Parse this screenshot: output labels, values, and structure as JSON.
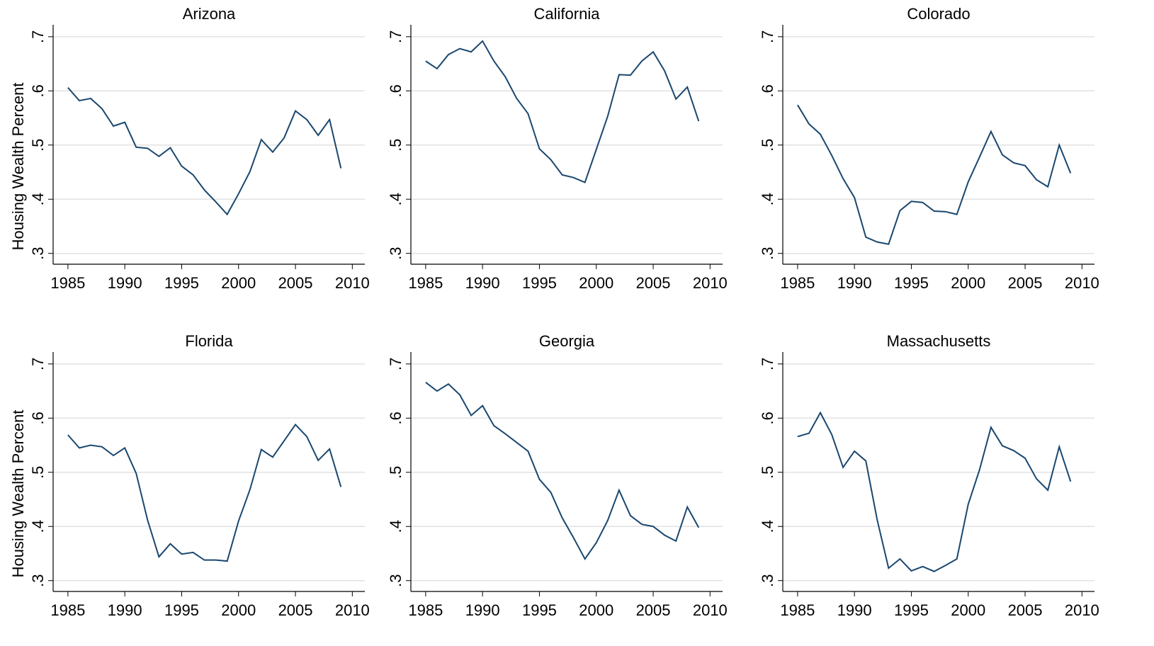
{
  "chart_data": [
    {
      "type": "line",
      "title": "Arizona",
      "ylabel": "Housing Wealth Percent",
      "color": "#1a476f",
      "grid": true,
      "x": [
        1985,
        1986,
        1987,
        1988,
        1989,
        1990,
        1991,
        1992,
        1993,
        1994,
        1995,
        1996,
        1997,
        1998,
        1999,
        2000,
        2001,
        2002,
        2003,
        2004,
        2005,
        2006,
        2007,
        2008,
        2009
      ],
      "values": [
        0.606,
        0.582,
        0.586,
        0.567,
        0.535,
        0.542,
        0.496,
        0.494,
        0.479,
        0.495,
        0.461,
        0.445,
        0.417,
        0.395,
        0.372,
        0.41,
        0.451,
        0.51,
        0.487,
        0.513,
        0.563,
        0.547,
        0.518,
        0.547,
        0.457
      ],
      "xlim": [
        1983.7,
        2011.1
      ],
      "xticks": [
        1985,
        1990,
        1995,
        2000,
        2005,
        2010
      ],
      "ylim": [
        0.28,
        0.722
      ],
      "yticks": [
        {
          "value": 0.3,
          "label": ".3"
        },
        {
          "value": 0.4,
          "label": ".4"
        },
        {
          "value": 0.5,
          "label": ".5"
        },
        {
          "value": 0.6,
          "label": ".6"
        },
        {
          "value": 0.7,
          "label": ".7"
        }
      ]
    },
    {
      "type": "line",
      "title": "California",
      "color": "#1a476f",
      "grid": true,
      "x": [
        1985,
        1986,
        1987,
        1988,
        1989,
        1990,
        1991,
        1992,
        1993,
        1994,
        1995,
        1996,
        1997,
        1998,
        1999,
        2000,
        2001,
        2002,
        2003,
        2004,
        2005,
        2006,
        2007,
        2008,
        2009
      ],
      "values": [
        0.655,
        0.641,
        0.667,
        0.678,
        0.672,
        0.692,
        0.655,
        0.626,
        0.586,
        0.558,
        0.493,
        0.473,
        0.445,
        0.44,
        0.431,
        0.492,
        0.553,
        0.63,
        0.629,
        0.655,
        0.672,
        0.637,
        0.585,
        0.607,
        0.544
      ],
      "xlim": [
        1983.7,
        2011.1
      ],
      "xticks": [
        1985,
        1990,
        1995,
        2000,
        2005,
        2010
      ],
      "ylim": [
        0.28,
        0.722
      ],
      "yticks": [
        {
          "value": 0.3,
          "label": ".3"
        },
        {
          "value": 0.4,
          "label": ".4"
        },
        {
          "value": 0.5,
          "label": ".5"
        },
        {
          "value": 0.6,
          "label": ".6"
        },
        {
          "value": 0.7,
          "label": ".7"
        }
      ]
    },
    {
      "type": "line",
      "title": "Colorado",
      "color": "#1a476f",
      "grid": true,
      "x": [
        1985,
        1986,
        1987,
        1988,
        1989,
        1990,
        1991,
        1992,
        1993,
        1994,
        1995,
        1996,
        1997,
        1998,
        1999,
        2000,
        2001,
        2002,
        2003,
        2004,
        2005,
        2006,
        2007,
        2008,
        2009
      ],
      "values": [
        0.574,
        0.539,
        0.52,
        0.481,
        0.438,
        0.403,
        0.33,
        0.321,
        0.317,
        0.379,
        0.396,
        0.394,
        0.378,
        0.377,
        0.372,
        0.432,
        0.478,
        0.525,
        0.482,
        0.467,
        0.462,
        0.436,
        0.423,
        0.5,
        0.448
      ],
      "xlim": [
        1983.7,
        2011.1
      ],
      "xticks": [
        1985,
        1990,
        1995,
        2000,
        2005,
        2010
      ],
      "ylim": [
        0.28,
        0.722
      ],
      "yticks": [
        {
          "value": 0.3,
          "label": ".3"
        },
        {
          "value": 0.4,
          "label": ".4"
        },
        {
          "value": 0.5,
          "label": ".5"
        },
        {
          "value": 0.6,
          "label": ".6"
        },
        {
          "value": 0.7,
          "label": ".7"
        }
      ]
    },
    {
      "type": "line",
      "title": "Florida",
      "ylabel": "Housing Wealth Percent",
      "color": "#1a476f",
      "grid": true,
      "x": [
        1985,
        1986,
        1987,
        1988,
        1989,
        1990,
        1991,
        1992,
        1993,
        1994,
        1995,
        1996,
        1997,
        1998,
        1999,
        2000,
        2001,
        2002,
        2003,
        2004,
        2005,
        2006,
        2007,
        2008,
        2009
      ],
      "values": [
        0.569,
        0.545,
        0.55,
        0.547,
        0.531,
        0.545,
        0.498,
        0.412,
        0.344,
        0.368,
        0.349,
        0.352,
        0.338,
        0.338,
        0.336,
        0.41,
        0.468,
        0.542,
        0.528,
        0.558,
        0.588,
        0.566,
        0.522,
        0.543,
        0.473
      ],
      "xlim": [
        1983.7,
        2011.1
      ],
      "xticks": [
        1985,
        1990,
        1995,
        2000,
        2005,
        2010
      ],
      "ylim": [
        0.28,
        0.722
      ],
      "yticks": [
        {
          "value": 0.3,
          "label": ".3"
        },
        {
          "value": 0.4,
          "label": ".4"
        },
        {
          "value": 0.5,
          "label": ".5"
        },
        {
          "value": 0.6,
          "label": ".6"
        },
        {
          "value": 0.7,
          "label": ".7"
        }
      ]
    },
    {
      "type": "line",
      "title": "Georgia",
      "color": "#1a476f",
      "grid": true,
      "x": [
        1985,
        1986,
        1987,
        1988,
        1989,
        1990,
        1991,
        1992,
        1993,
        1994,
        1995,
        1996,
        1997,
        1998,
        1999,
        2000,
        2001,
        2002,
        2003,
        2004,
        2005,
        2006,
        2007,
        2008,
        2009
      ],
      "values": [
        0.666,
        0.65,
        0.663,
        0.643,
        0.605,
        0.623,
        0.586,
        0.571,
        0.555,
        0.539,
        0.487,
        0.463,
        0.416,
        0.379,
        0.34,
        0.37,
        0.411,
        0.467,
        0.42,
        0.404,
        0.4,
        0.384,
        0.373,
        0.436,
        0.398
      ],
      "xlim": [
        1983.7,
        2011.1
      ],
      "xticks": [
        1985,
        1990,
        1995,
        2000,
        2005,
        2010
      ],
      "ylim": [
        0.28,
        0.722
      ],
      "yticks": [
        {
          "value": 0.3,
          "label": ".3"
        },
        {
          "value": 0.4,
          "label": ".4"
        },
        {
          "value": 0.5,
          "label": ".5"
        },
        {
          "value": 0.6,
          "label": ".6"
        },
        {
          "value": 0.7,
          "label": ".7"
        }
      ]
    },
    {
      "type": "line",
      "title": "Massachusetts",
      "color": "#1a476f",
      "grid": true,
      "x": [
        1985,
        1986,
        1987,
        1988,
        1989,
        1990,
        1991,
        1992,
        1993,
        1994,
        1995,
        1996,
        1997,
        1998,
        1999,
        2000,
        2001,
        2002,
        2003,
        2004,
        2005,
        2006,
        2007,
        2008,
        2009
      ],
      "values": [
        0.566,
        0.572,
        0.61,
        0.57,
        0.509,
        0.539,
        0.521,
        0.412,
        0.323,
        0.34,
        0.318,
        0.326,
        0.317,
        0.328,
        0.34,
        0.441,
        0.505,
        0.583,
        0.549,
        0.54,
        0.526,
        0.488,
        0.467,
        0.547,
        0.483
      ],
      "xlim": [
        1983.7,
        2011.1
      ],
      "xticks": [
        1985,
        1990,
        1995,
        2000,
        2005,
        2010
      ],
      "ylim": [
        0.28,
        0.722
      ],
      "yticks": [
        {
          "value": 0.3,
          "label": ".3"
        },
        {
          "value": 0.4,
          "label": ".4"
        },
        {
          "value": 0.5,
          "label": ".5"
        },
        {
          "value": 0.6,
          "label": ".6"
        },
        {
          "value": 0.7,
          "label": ".7"
        }
      ]
    }
  ]
}
